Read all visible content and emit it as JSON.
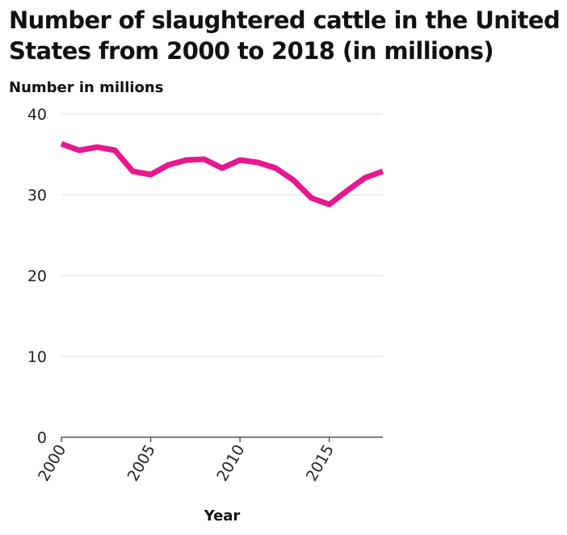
{
  "chart_data": {
    "type": "line",
    "title": "Number of slaughtered cattle in the United States from 2000 to 2018 (in millions)",
    "ylabel": "Number in millions",
    "xlabel": "Year",
    "xlim": [
      2000,
      2018
    ],
    "ylim": [
      0,
      40
    ],
    "x_ticks": [
      2000,
      2005,
      2010,
      2015
    ],
    "y_ticks": [
      0,
      10,
      20,
      30,
      40
    ],
    "grid": true,
    "legend": "none",
    "line_color": "#e8168f",
    "grid_color": "#dddddd",
    "series": [
      {
        "x": [
          2000,
          2001,
          2002,
          2003,
          2004,
          2005,
          2006,
          2007,
          2008,
          2009,
          2010,
          2011,
          2012,
          2013,
          2014,
          2015,
          2016,
          2017,
          2018
        ],
        "values": [
          36.3,
          35.5,
          35.9,
          35.5,
          32.9,
          32.5,
          33.7,
          34.3,
          34.4,
          33.3,
          34.3,
          34.0,
          33.3,
          31.8,
          29.6,
          28.8,
          30.5,
          32.1,
          32.9
        ]
      }
    ]
  }
}
